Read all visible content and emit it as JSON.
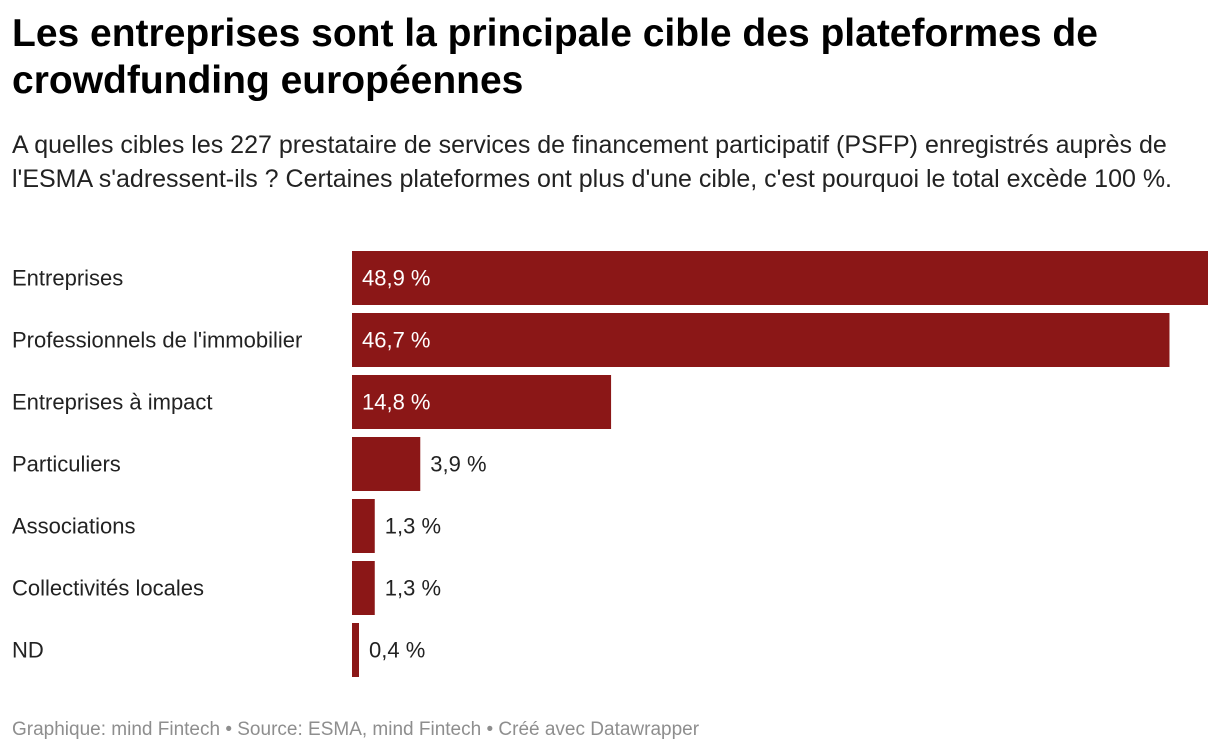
{
  "title": "Les entreprises sont la principale cible des plateformes de crowdfunding européennes",
  "subtitle": "A quelles cibles les 227 prestataire de services de financement participatif (PSFP) enregistrés auprès de l'ESMA s'adressent-ils ? Certaines plateformes ont plus d'une cible, c'est pourquoi le total excède 100 %.",
  "footer": "Graphique: mind Fintech • Source: ESMA, mind Fintech • Créé avec Datawrapper",
  "colors": {
    "bar": "#8b1717"
  },
  "chart_data": {
    "type": "bar",
    "orientation": "horizontal",
    "title": "Les entreprises sont la principale cible des plateformes de crowdfunding européennes",
    "categories": [
      "Entreprises",
      "Professionnels de l'immobilier",
      "Entreprises à impact",
      "Particuliers",
      "Associations",
      "Collectivités locales",
      "ND"
    ],
    "values": [
      48.9,
      46.7,
      14.8,
      3.9,
      1.3,
      1.3,
      0.4
    ],
    "labels": [
      "48,9 %",
      "46,7 %",
      "14,8 %",
      "3,9 %",
      "1,3 %",
      "1,3 %",
      "0,4 %"
    ],
    "unit": "%",
    "xlim": [
      0,
      48.9
    ],
    "xlabel": "",
    "ylabel": "",
    "grid": false
  }
}
